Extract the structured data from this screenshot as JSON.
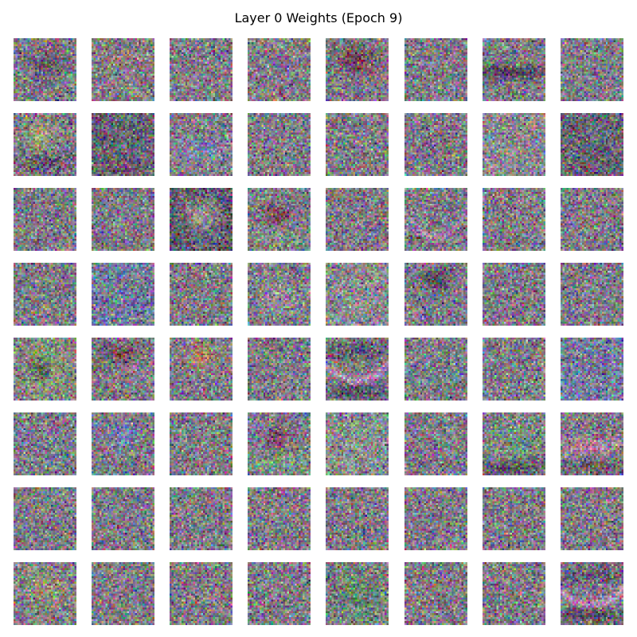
{
  "chart_data": {
    "type": "heatmap",
    "title": "Layer 0 Weights (Epoch 9)",
    "grid": {
      "rows": 8,
      "cols": 8
    },
    "tile_resolution": 32,
    "tiles": [
      {
        "row": 0,
        "col": 0,
        "pattern": "faint-dark-blob"
      },
      {
        "row": 0,
        "col": 1,
        "pattern": "faint-warm-band"
      },
      {
        "row": 0,
        "col": 2,
        "pattern": "noise"
      },
      {
        "row": 0,
        "col": 3,
        "pattern": "noise"
      },
      {
        "row": 0,
        "col": 4,
        "pattern": "dark-red-blob"
      },
      {
        "row": 0,
        "col": 5,
        "pattern": "noise"
      },
      {
        "row": 0,
        "col": 6,
        "pattern": "dark-horizontal-band"
      },
      {
        "row": 0,
        "col": 7,
        "pattern": "noise"
      },
      {
        "row": 1,
        "col": 0,
        "pattern": "green-yellow-center"
      },
      {
        "row": 1,
        "col": 1,
        "pattern": "dark-noise"
      },
      {
        "row": 1,
        "col": 2,
        "pattern": "blue-purple-center"
      },
      {
        "row": 1,
        "col": 3,
        "pattern": "noise"
      },
      {
        "row": 1,
        "col": 4,
        "pattern": "noise"
      },
      {
        "row": 1,
        "col": 5,
        "pattern": "noise"
      },
      {
        "row": 1,
        "col": 6,
        "pattern": "light-noise"
      },
      {
        "row": 1,
        "col": 7,
        "pattern": "dark-noise"
      },
      {
        "row": 2,
        "col": 0,
        "pattern": "noise"
      },
      {
        "row": 2,
        "col": 1,
        "pattern": "noise"
      },
      {
        "row": 2,
        "col": 2,
        "pattern": "warm-center-dark-edges"
      },
      {
        "row": 2,
        "col": 3,
        "pattern": "dark-red-center-green"
      },
      {
        "row": 2,
        "col": 4,
        "pattern": "noise"
      },
      {
        "row": 2,
        "col": 5,
        "pattern": "pink-arc"
      },
      {
        "row": 2,
        "col": 6,
        "pattern": "noise"
      },
      {
        "row": 2,
        "col": 7,
        "pattern": "noise"
      },
      {
        "row": 3,
        "col": 0,
        "pattern": "noise"
      },
      {
        "row": 3,
        "col": 1,
        "pattern": "blue-noise"
      },
      {
        "row": 3,
        "col": 2,
        "pattern": "noise"
      },
      {
        "row": 3,
        "col": 3,
        "pattern": "faint-light-center"
      },
      {
        "row": 3,
        "col": 4,
        "pattern": "light-noise"
      },
      {
        "row": 3,
        "col": 5,
        "pattern": "dark-blob-top"
      },
      {
        "row": 3,
        "col": 6,
        "pattern": "noise"
      },
      {
        "row": 3,
        "col": 7,
        "pattern": "noise"
      },
      {
        "row": 4,
        "col": 0,
        "pattern": "dark-center-green"
      },
      {
        "row": 4,
        "col": 1,
        "pattern": "dark-red-top"
      },
      {
        "row": 4,
        "col": 2,
        "pattern": "orange-center"
      },
      {
        "row": 4,
        "col": 3,
        "pattern": "noise"
      },
      {
        "row": 4,
        "col": 4,
        "pattern": "pink-smile-dark"
      },
      {
        "row": 4,
        "col": 5,
        "pattern": "faint-smile"
      },
      {
        "row": 4,
        "col": 6,
        "pattern": "noise"
      },
      {
        "row": 4,
        "col": 7,
        "pattern": "blue-noise"
      },
      {
        "row": 5,
        "col": 0,
        "pattern": "noise"
      },
      {
        "row": 5,
        "col": 1,
        "pattern": "blue-center"
      },
      {
        "row": 5,
        "col": 2,
        "pattern": "noise"
      },
      {
        "row": 5,
        "col": 3,
        "pattern": "dark-red-center-green"
      },
      {
        "row": 5,
        "col": 4,
        "pattern": "light-green-noise"
      },
      {
        "row": 5,
        "col": 5,
        "pattern": "noise"
      },
      {
        "row": 5,
        "col": 6,
        "pattern": "green-dark-bottom"
      },
      {
        "row": 5,
        "col": 7,
        "pattern": "pink-band"
      },
      {
        "row": 6,
        "col": 0,
        "pattern": "noise"
      },
      {
        "row": 6,
        "col": 1,
        "pattern": "noise"
      },
      {
        "row": 6,
        "col": 2,
        "pattern": "noise"
      },
      {
        "row": 6,
        "col": 3,
        "pattern": "noise"
      },
      {
        "row": 6,
        "col": 4,
        "pattern": "noise"
      },
      {
        "row": 6,
        "col": 5,
        "pattern": "noise"
      },
      {
        "row": 6,
        "col": 6,
        "pattern": "noise"
      },
      {
        "row": 6,
        "col": 7,
        "pattern": "noise"
      },
      {
        "row": 7,
        "col": 0,
        "pattern": "green-orange-center"
      },
      {
        "row": 7,
        "col": 1,
        "pattern": "noise"
      },
      {
        "row": 7,
        "col": 2,
        "pattern": "noise"
      },
      {
        "row": 7,
        "col": 3,
        "pattern": "noise"
      },
      {
        "row": 7,
        "col": 4,
        "pattern": "green-dark-noise"
      },
      {
        "row": 7,
        "col": 5,
        "pattern": "noise"
      },
      {
        "row": 7,
        "col": 6,
        "pattern": "noise"
      },
      {
        "row": 7,
        "col": 7,
        "pattern": "pink-smile-dark"
      }
    ]
  }
}
